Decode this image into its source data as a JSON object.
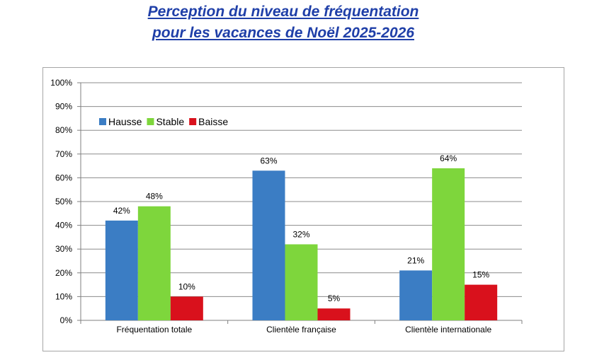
{
  "title": {
    "line1": "Perception du niveau de fréquentation",
    "line2": "pour les vacances de Noël 2025-2026"
  },
  "chart_data": {
    "type": "bar",
    "title": "Perception du niveau de fréquentation pour les vacances de Noël 2025-2026",
    "categories": [
      "Fréquentation totale",
      "Clientèle française",
      "Clientèle internationale"
    ],
    "series": [
      {
        "name": "Hausse",
        "color": "#3b7dc4",
        "values": [
          42,
          63,
          21
        ],
        "labels": [
          "42%",
          "63%",
          "21%"
        ]
      },
      {
        "name": "Stable",
        "color": "#7ed63c",
        "values": [
          48,
          32,
          64
        ],
        "labels": [
          "48%",
          "32%",
          "64%"
        ]
      },
      {
        "name": "Baisse",
        "color": "#d9111c",
        "values": [
          10,
          5,
          15
        ],
        "labels": [
          "10%",
          "5%",
          "15%"
        ]
      }
    ],
    "y_ticks": [
      "0%",
      "10%",
      "20%",
      "30%",
      "40%",
      "50%",
      "60%",
      "70%",
      "80%",
      "90%",
      "100%"
    ],
    "ylim": [
      0,
      100
    ],
    "xlabel": "",
    "ylabel": "",
    "grid": true,
    "legend_position": "top-left"
  }
}
